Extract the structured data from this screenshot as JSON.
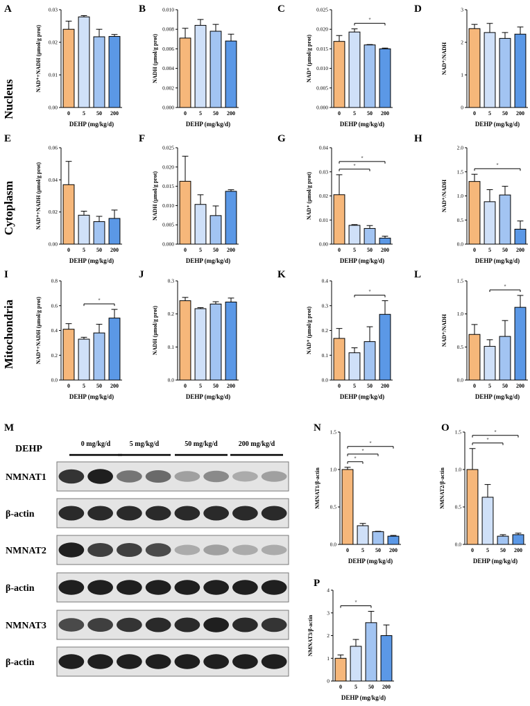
{
  "figure": {
    "rows": [
      "Nucleus",
      "Cytoplasm",
      "Mitochondria"
    ],
    "colors": [
      "#f6b77a",
      "#cfe0f8",
      "#a2c4f2",
      "#5b98e6"
    ]
  },
  "chart_data": [
    {
      "type": "bar",
      "panel": "A",
      "title": "",
      "xlabel": "DEHP (mg/kg/d)",
      "ylabel": "NAD⁺+NADH (μmol/g prot)",
      "categories": [
        "0",
        "5",
        "50",
        "200"
      ],
      "values": [
        0.024,
        0.0278,
        0.0217,
        0.0218
      ],
      "errors": [
        0.0025,
        0.0004,
        0.0023,
        0.0006
      ],
      "ylim": [
        0,
        0.03
      ],
      "yticks": [
        "0.00",
        "0.01",
        "0.02",
        "0.03"
      ],
      "significance": []
    },
    {
      "type": "bar",
      "panel": "B",
      "title": "",
      "xlabel": "DEHP (mg/kg/d)",
      "ylabel": "NADH (μmol/g prot)",
      "categories": [
        "0",
        "5",
        "50",
        "200"
      ],
      "values": [
        0.0071,
        0.0084,
        0.0078,
        0.0068
      ],
      "errors": [
        0.001,
        0.0006,
        0.0007,
        0.0007
      ],
      "ylim": [
        0,
        0.01
      ],
      "yticks": [
        "0.000",
        "0.002",
        "0.004",
        "0.006",
        "0.008",
        "0.010"
      ],
      "significance": []
    },
    {
      "type": "bar",
      "panel": "C",
      "title": "",
      "xlabel": "DEHP (mg/kg/d)",
      "ylabel": "NAD⁺ (μmol/g prot)",
      "categories": [
        "0",
        "5",
        "50",
        "200"
      ],
      "values": [
        0.0169,
        0.0193,
        0.016,
        0.015
      ],
      "errors": [
        0.0015,
        0.0008,
        0.0001,
        0.0002
      ],
      "ylim": [
        0,
        0.025
      ],
      "yticks": [
        "0.000",
        "0.005",
        "0.010",
        "0.015",
        "0.020",
        "0.025"
      ],
      "significance": [
        {
          "from": 1,
          "to": 3,
          "label": "*"
        }
      ]
    },
    {
      "type": "bar",
      "panel": "D",
      "title": "",
      "xlabel": "DEHP (mg/kg/d)",
      "ylabel": "NAD⁺/NADH",
      "categories": [
        "0",
        "5",
        "50",
        "200"
      ],
      "values": [
        2.42,
        2.3,
        2.12,
        2.25
      ],
      "errors": [
        0.13,
        0.28,
        0.18,
        0.22
      ],
      "ylim": [
        0,
        3
      ],
      "yticks": [
        "0",
        "1",
        "2",
        "3"
      ],
      "significance": []
    },
    {
      "type": "bar",
      "panel": "E",
      "title": "",
      "xlabel": "DEHP (mg/kg/d)",
      "ylabel": "NAD⁺+NADH (μmol/g prot)",
      "categories": [
        "0",
        "5",
        "50",
        "200"
      ],
      "values": [
        0.037,
        0.018,
        0.014,
        0.016
      ],
      "errors": [
        0.0145,
        0.0025,
        0.0033,
        0.0052
      ],
      "ylim": [
        0,
        0.06
      ],
      "yticks": [
        "0.00",
        "0.02",
        "0.04",
        "0.06"
      ],
      "significance": []
    },
    {
      "type": "bar",
      "panel": "F",
      "title": "",
      "xlabel": "DEHP (mg/kg/d)",
      "ylabel": "NADH (μmol/g prot)",
      "categories": [
        "0",
        "5",
        "50",
        "200"
      ],
      "values": [
        0.0163,
        0.0103,
        0.0074,
        0.0137
      ],
      "errors": [
        0.0065,
        0.0025,
        0.0025,
        0.0004
      ],
      "ylim": [
        0,
        0.025
      ],
      "yticks": [
        "0.000",
        "0.005",
        "0.010",
        "0.015",
        "0.020",
        "0.025"
      ],
      "significance": []
    },
    {
      "type": "bar",
      "panel": "G",
      "title": "",
      "xlabel": "DEHP (mg/kg/d)",
      "ylabel": "NAD⁺ (μmol/g prot)",
      "categories": [
        "0",
        "5",
        "50",
        "200"
      ],
      "values": [
        0.0205,
        0.0078,
        0.0065,
        0.0025
      ],
      "errors": [
        0.0083,
        0.0003,
        0.0012,
        0.0008
      ],
      "ylim": [
        0,
        0.04
      ],
      "yticks": [
        "0.00",
        "0.01",
        "0.02",
        "0.03",
        "0.04"
      ],
      "significance": [
        {
          "from": 0,
          "to": 2,
          "label": "*"
        },
        {
          "from": 0,
          "to": 3,
          "label": "*"
        }
      ]
    },
    {
      "type": "bar",
      "panel": "H",
      "title": "",
      "xlabel": "DEHP (mg/kg/d)",
      "ylabel": "NAD⁺/NADH",
      "categories": [
        "0",
        "5",
        "50",
        "200"
      ],
      "values": [
        1.3,
        0.88,
        1.02,
        0.31
      ],
      "errors": [
        0.15,
        0.25,
        0.18,
        0.17
      ],
      "ylim": [
        0,
        2
      ],
      "yticks": [
        "0.0",
        "0.5",
        "1.0",
        "1.5",
        "2.0"
      ],
      "significance": [
        {
          "from": 0,
          "to": 3,
          "label": "*"
        }
      ]
    },
    {
      "type": "bar",
      "panel": "I",
      "title": "",
      "xlabel": "DEHP (mg/kg/d)",
      "ylabel": "NAD⁺+NADH (μmol/g prot)",
      "categories": [
        "0",
        "5",
        "50",
        "200"
      ],
      "values": [
        0.41,
        0.33,
        0.38,
        0.5
      ],
      "errors": [
        0.045,
        0.015,
        0.07,
        0.07
      ],
      "ylim": [
        0,
        0.8
      ],
      "yticks": [
        "0.0",
        "0.2",
        "0.4",
        "0.6",
        "0.8"
      ],
      "significance": [
        {
          "from": 1,
          "to": 3,
          "label": "*"
        }
      ]
    },
    {
      "type": "bar",
      "panel": "J",
      "title": "",
      "xlabel": "DEHP (mg/kg/d)",
      "ylabel": "NADH (μmol/g prot)",
      "categories": [
        "0",
        "5",
        "50",
        "200"
      ],
      "values": [
        0.24,
        0.216,
        0.23,
        0.236
      ],
      "errors": [
        0.01,
        0.003,
        0.007,
        0.012
      ],
      "ylim": [
        0,
        0.3
      ],
      "yticks": [
        "0.0",
        "0.1",
        "0.2",
        "0.3"
      ],
      "significance": []
    },
    {
      "type": "bar",
      "panel": "K",
      "title": "",
      "xlabel": "DEHP (mg/kg/d)",
      "ylabel": "NAD⁺ (μmol/g prot)",
      "categories": [
        "0",
        "5",
        "50",
        "200"
      ],
      "values": [
        0.168,
        0.11,
        0.155,
        0.265
      ],
      "errors": [
        0.04,
        0.02,
        0.06,
        0.055
      ],
      "ylim": [
        0,
        0.4
      ],
      "yticks": [
        "0.0",
        "0.1",
        "0.2",
        "0.3",
        "0.4"
      ],
      "significance": [
        {
          "from": 1,
          "to": 3,
          "label": "*"
        }
      ]
    },
    {
      "type": "bar",
      "panel": "L",
      "title": "",
      "xlabel": "DEHP (mg/kg/d)",
      "ylabel": "NAD⁺/NADH",
      "categories": [
        "0",
        "5",
        "50",
        "200"
      ],
      "values": [
        0.69,
        0.51,
        0.66,
        1.1
      ],
      "errors": [
        0.15,
        0.1,
        0.24,
        0.18
      ],
      "ylim": [
        0,
        1.5
      ],
      "yticks": [
        "0.0",
        "0.5",
        "1.0",
        "1.5"
      ],
      "significance": [
        {
          "from": 1,
          "to": 3,
          "label": "*"
        }
      ]
    },
    {
      "type": "bar",
      "panel": "N",
      "title": "",
      "xlabel": "DEHP (mg/kg/d)",
      "ylabel": "NMNAT1/β-actin",
      "categories": [
        "0",
        "5",
        "50",
        "200"
      ],
      "values": [
        1.0,
        0.25,
        0.17,
        0.11
      ],
      "errors": [
        0.03,
        0.03,
        0.005,
        0.01
      ],
      "ylim": [
        0,
        1.5
      ],
      "yticks": [
        "0.0",
        "0.5",
        "1.0",
        "1.5"
      ],
      "significance": [
        {
          "from": 0,
          "to": 1,
          "label": "*"
        },
        {
          "from": 0,
          "to": 2,
          "label": "*"
        },
        {
          "from": 0,
          "to": 3,
          "label": "*"
        }
      ]
    },
    {
      "type": "bar",
      "panel": "O",
      "title": "",
      "xlabel": "DEHP (mg/kg/d)",
      "ylabel": "NMNAT2/β-actin",
      "categories": [
        "0",
        "5",
        "50",
        "200"
      ],
      "values": [
        1.0,
        0.63,
        0.11,
        0.13
      ],
      "errors": [
        0.28,
        0.17,
        0.02,
        0.02
      ],
      "ylim": [
        0,
        1.5
      ],
      "yticks": [
        "0.0",
        "0.5",
        "1.0",
        "1.5"
      ],
      "significance": [
        {
          "from": 0,
          "to": 2,
          "label": "*"
        },
        {
          "from": 0,
          "to": 3,
          "label": "*"
        }
      ]
    },
    {
      "type": "bar",
      "panel": "P",
      "title": "",
      "xlabel": "DEHP (mg/kg/d)",
      "ylabel": "NMNAT3/β-actin",
      "categories": [
        "0",
        "5",
        "50",
        "200"
      ],
      "values": [
        1.0,
        1.53,
        2.57,
        2.0
      ],
      "errors": [
        0.15,
        0.3,
        0.5,
        0.47
      ],
      "ylim": [
        0,
        4
      ],
      "yticks": [
        "0",
        "1",
        "2",
        "3",
        "4"
      ],
      "significance": [
        {
          "from": 0,
          "to": 2,
          "label": "*"
        }
      ]
    }
  ],
  "western_blot": {
    "panel": "M",
    "treatment_label": "DEHP",
    "groups": [
      "0 mg/kg/d",
      "5 mg/kg/d",
      "50 mg/kg/d",
      "200 mg/kg/d"
    ],
    "rows": [
      {
        "label": "NMNAT1",
        "intensities": [
          0.85,
          0.95,
          0.55,
          0.6,
          0.35,
          0.45,
          0.3,
          0.35
        ]
      },
      {
        "label": "β-actin",
        "intensities": [
          0.9,
          0.9,
          0.9,
          0.9,
          0.9,
          0.9,
          0.9,
          0.9
        ]
      },
      {
        "label": "NMNAT2",
        "intensities": [
          0.95,
          0.8,
          0.8,
          0.75,
          0.3,
          0.35,
          0.3,
          0.3
        ]
      },
      {
        "label": "β-actin",
        "intensities": [
          0.95,
          0.95,
          0.95,
          0.95,
          0.95,
          0.95,
          0.95,
          0.95
        ]
      },
      {
        "label": "NMNAT3",
        "intensities": [
          0.75,
          0.8,
          0.85,
          0.9,
          0.9,
          0.95,
          0.9,
          0.85
        ]
      },
      {
        "label": "β-actin",
        "intensities": [
          0.95,
          0.95,
          0.95,
          0.95,
          0.95,
          0.95,
          0.95,
          0.95
        ]
      }
    ]
  }
}
